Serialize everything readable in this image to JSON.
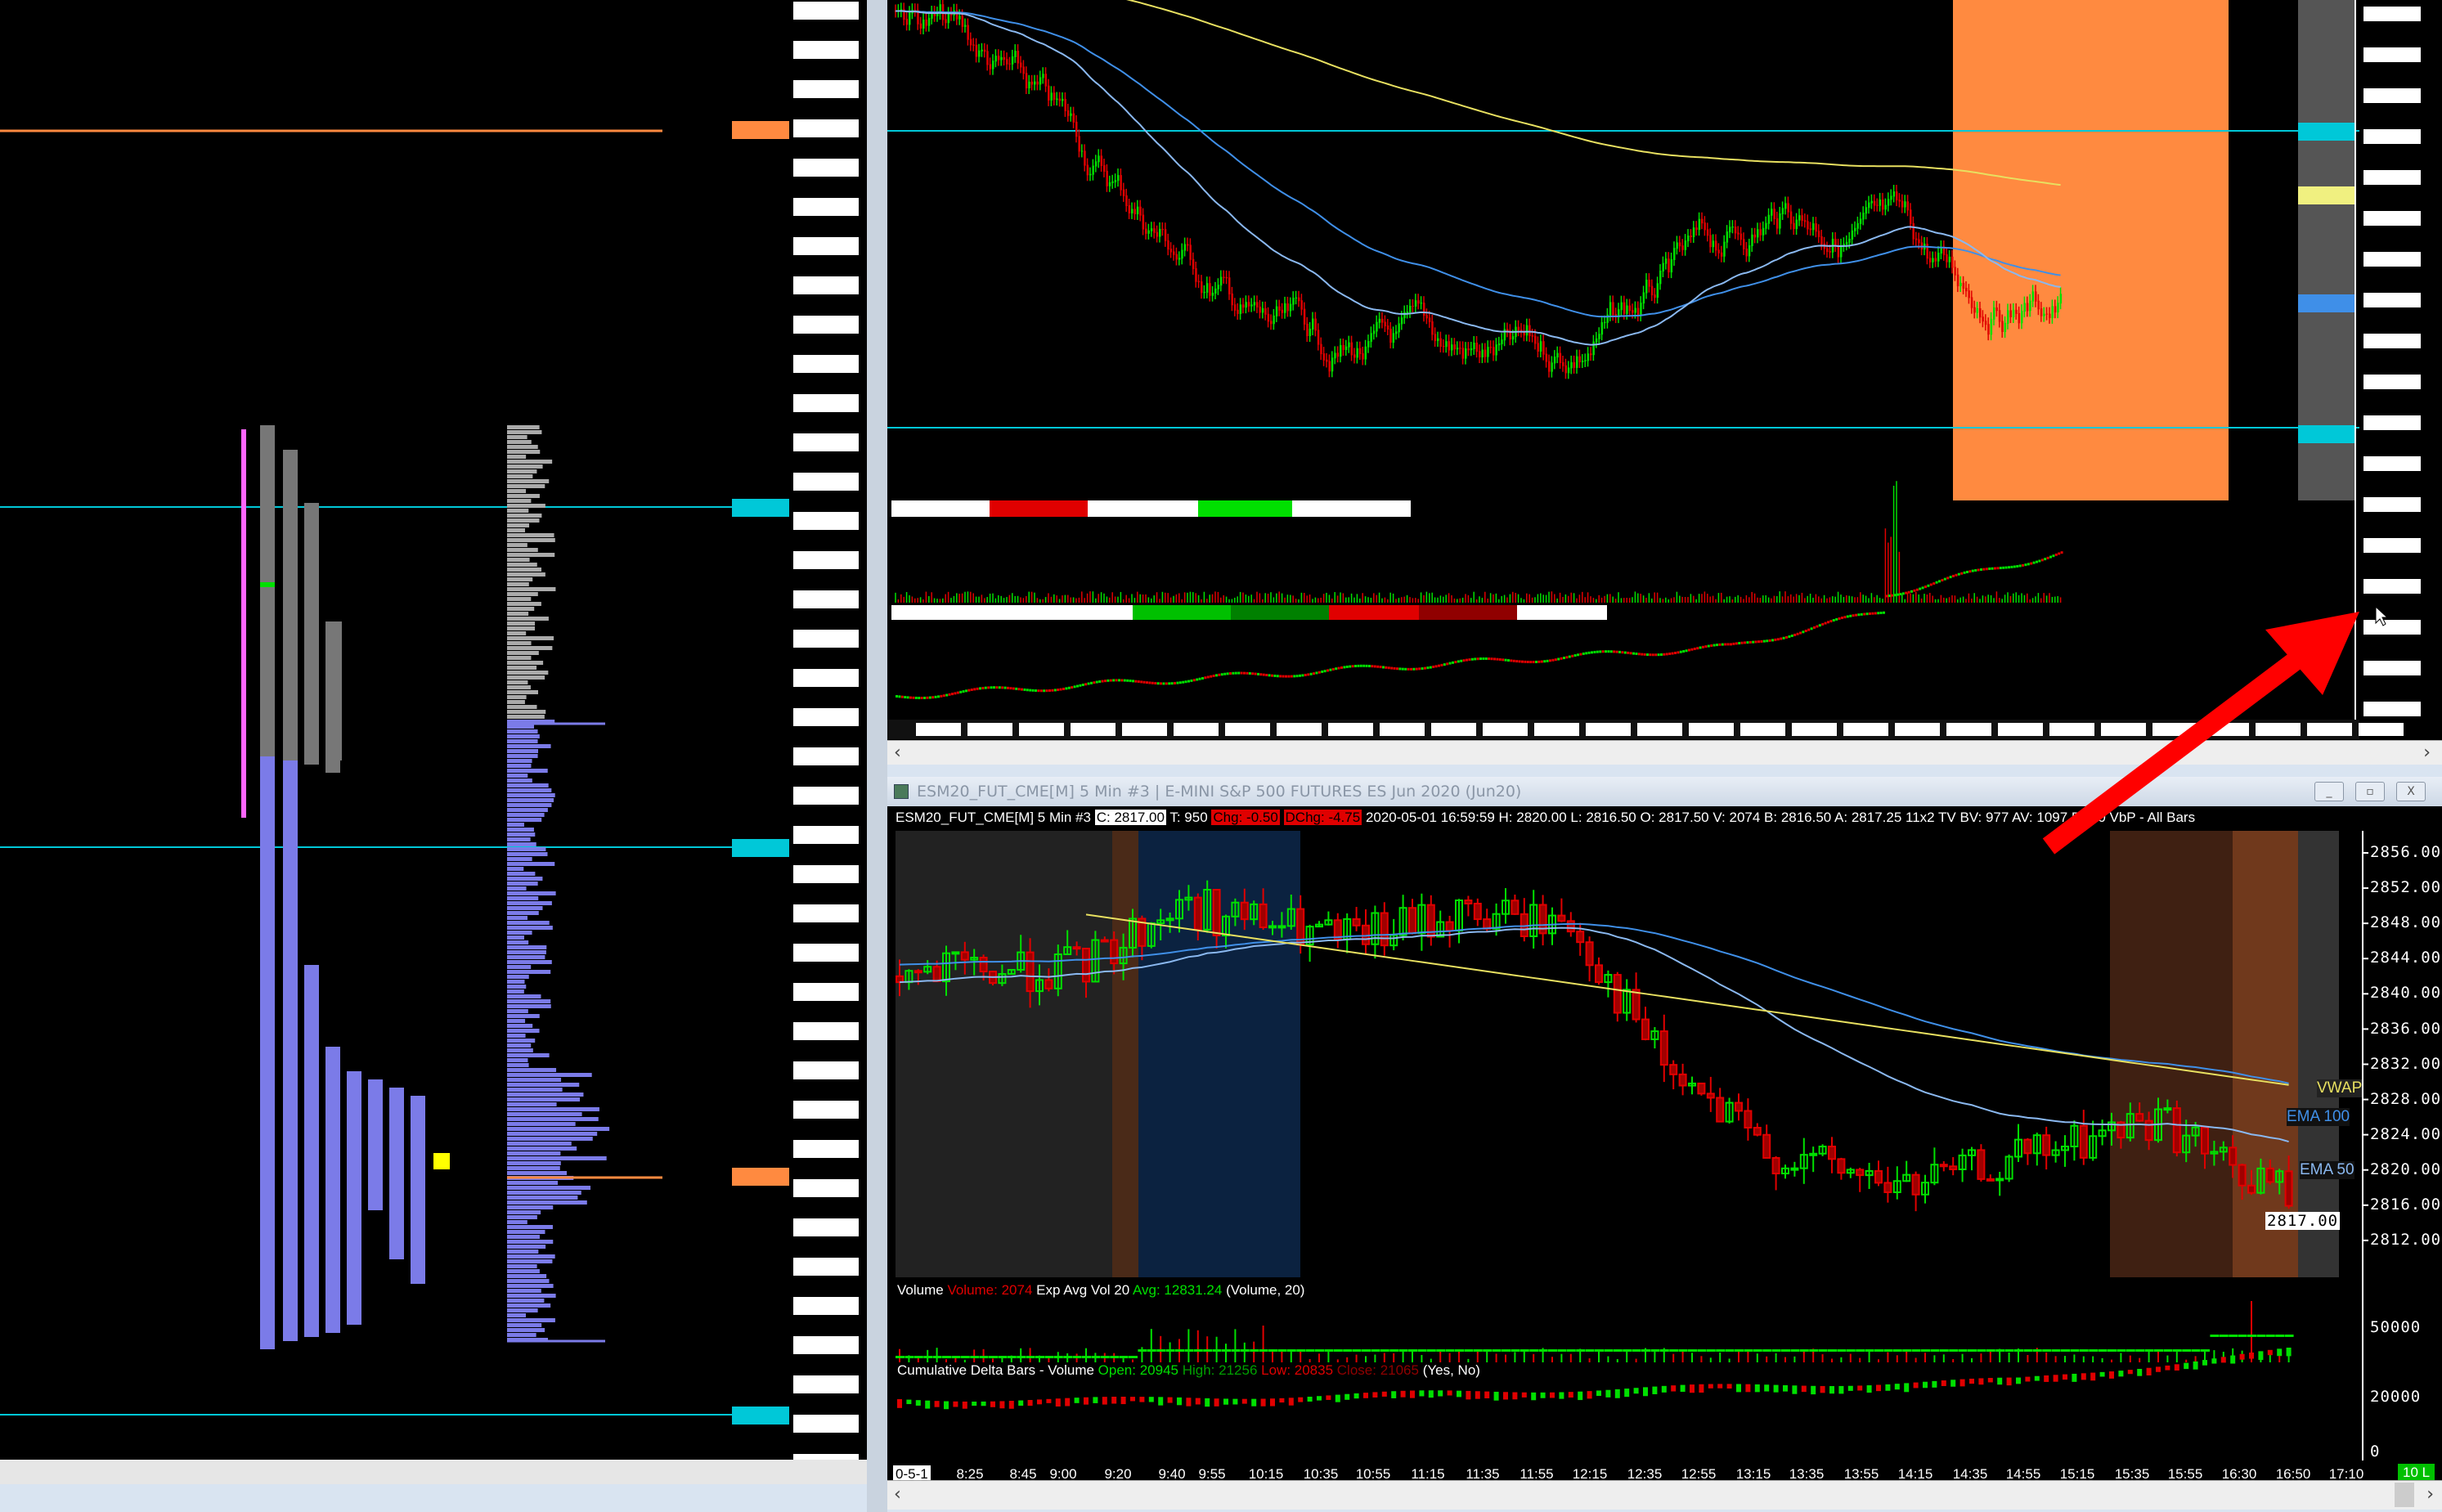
{
  "window_title": "ESM20_FUT_CME[M]  5 Min  #3 | E-MINI S&P 500 FUTURES ES Jun 2020 (Jun20)",
  "window_buttons": {
    "minimize": "_",
    "restore": "▫",
    "close": "X"
  },
  "header": {
    "symbol": "ESM20_FUT_CME[M]  5 Min  #3",
    "close": "C: 2817.00",
    "ticks": "T: 950",
    "chg": "Chg: -0.50",
    "dchg": "DChg: -4.75",
    "rest": "2020-05-01 16:59:59 H: 2820.00 L: 2816.50 O: 2817.50 V: 2074 B: 2816.50 A: 2817.25 11x2 TV",
    "tail": "BV: 977 AV: 1097 DV: 0 VbP - All Bars"
  },
  "price_axis": [
    "2856.00",
    "2852.00",
    "2848.00",
    "2844.00",
    "2840.00",
    "2836.00",
    "2832.00",
    "2828.00",
    "2824.00",
    "2820.00",
    "2816.00",
    "2812.00"
  ],
  "last_price": "2817.00",
  "line_labels": {
    "vwap": "VWAP",
    "ema100": "EMA 100",
    "ema50": "EMA 50"
  },
  "volume_study": {
    "name": "Volume",
    "volume": "Volume: 2074",
    "avg_name": "Exp Avg Vol 20",
    "avg": "Avg: 12831.24",
    "params": "(Volume, 20)",
    "axis": [
      "50000"
    ]
  },
  "delta_study": {
    "name": "Cumulative Delta Bars - Volume",
    "open": "Open: 20945",
    "high": "High: 21256",
    "low": "Low: 20835",
    "close": "Close: 21065",
    "params": "(Yes, No)",
    "axis": [
      "20000",
      "0"
    ]
  },
  "time_axis": {
    "date": "0-5-1",
    "labels": [
      "8:25",
      "8:45",
      "9:00",
      "9:20",
      "9:40",
      "9:55",
      "10:15",
      "10:35",
      "10:55",
      "11:15",
      "11:35",
      "11:55",
      "12:15",
      "12:35",
      "12:55",
      "13:15",
      "13:35",
      "13:55",
      "14:15",
      "14:35",
      "14:55",
      "15:15",
      "15:35",
      "15:55",
      "16:30",
      "16:50",
      "17:10"
    ],
    "badge": "10 L"
  },
  "colors": {
    "up": "#00e000",
    "down": "#e00000",
    "vwap": "#e8e060",
    "ema100": "#3f8fe8",
    "ema50": "#8ab8f0",
    "level": "#00c8d8",
    "highlight": "#ff8a40",
    "profile": "#7b7be8",
    "arrow": "#ff0000"
  },
  "icons": {
    "scroll_left": "‹",
    "scroll_right": "›"
  }
}
